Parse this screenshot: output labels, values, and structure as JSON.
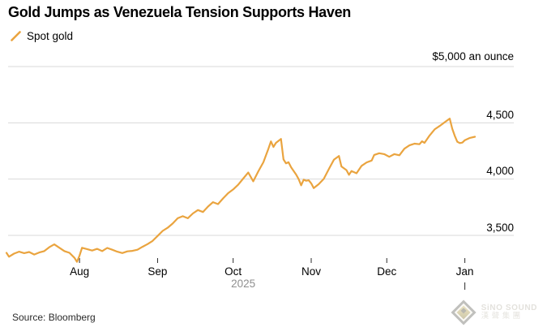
{
  "header": {
    "title": "Gold Jumps as Venezuela Tension Supports Haven",
    "legend": {
      "marker": "gold-slash",
      "series_label": "Spot gold"
    }
  },
  "source": "Source: Bloomberg",
  "watermark": {
    "logo": "diamond-logo",
    "line1": "SiNO SOUND",
    "line2": "漢聲集團"
  },
  "colors": {
    "background": "#ffffff",
    "line": "#EAA43F",
    "grid": "#D9D9D9",
    "axis_text": "#000000",
    "year_text": "#8F8F8F",
    "tick": "#2B2B2B"
  },
  "chart_data": {
    "type": "line",
    "title": "Gold Jumps as Venezuela Tension Supports Haven",
    "legend_position": "top-left",
    "grid": "horizontal-only",
    "x": {
      "unit": "days since 2025-07-03",
      "domain": [
        0,
        186
      ],
      "months": [
        {
          "label": "Aug",
          "day": 29
        },
        {
          "label": "Sep",
          "day": 60
        },
        {
          "label": "Oct",
          "day": 90
        },
        {
          "label": "Nov",
          "day": 121
        },
        {
          "label": "Dec",
          "day": 151
        },
        {
          "label": "Jan",
          "day": 182
        }
      ],
      "year_label": {
        "label": "2025",
        "center_day": 94
      },
      "year_boundary_tick_day": 182
    },
    "y": {
      "top_label": "$5,000 an ounce",
      "top_gridline_value": 5000,
      "gridline_values": [
        5000,
        4500,
        4000,
        3500
      ],
      "ticks": [
        {
          "label": "4,500",
          "value": 4500
        },
        {
          "label": "4,000",
          "value": 4000
        },
        {
          "label": "3,500",
          "value": 3500
        }
      ],
      "ylim": [
        3200,
        5000
      ]
    },
    "series": [
      {
        "name": "Spot gold",
        "color": "#EAA43F",
        "points": [
          [
            0,
            3345
          ],
          [
            1,
            3310
          ],
          [
            3,
            3338
          ],
          [
            5,
            3355
          ],
          [
            7,
            3342
          ],
          [
            9,
            3352
          ],
          [
            11,
            3330
          ],
          [
            13,
            3348
          ],
          [
            15,
            3360
          ],
          [
            17,
            3395
          ],
          [
            19,
            3420
          ],
          [
            21,
            3390
          ],
          [
            23,
            3360
          ],
          [
            25,
            3345
          ],
          [
            27,
            3300
          ],
          [
            28,
            3265
          ],
          [
            29,
            3320
          ],
          [
            30,
            3390
          ],
          [
            32,
            3378
          ],
          [
            34,
            3365
          ],
          [
            36,
            3380
          ],
          [
            38,
            3360
          ],
          [
            40,
            3388
          ],
          [
            42,
            3372
          ],
          [
            44,
            3355
          ],
          [
            46,
            3343
          ],
          [
            48,
            3358
          ],
          [
            50,
            3362
          ],
          [
            52,
            3372
          ],
          [
            54,
            3398
          ],
          [
            56,
            3422
          ],
          [
            58,
            3450
          ],
          [
            60,
            3495
          ],
          [
            62,
            3540
          ],
          [
            64,
            3568
          ],
          [
            66,
            3605
          ],
          [
            68,
            3652
          ],
          [
            70,
            3670
          ],
          [
            72,
            3652
          ],
          [
            74,
            3695
          ],
          [
            76,
            3725
          ],
          [
            78,
            3708
          ],
          [
            80,
            3755
          ],
          [
            82,
            3795
          ],
          [
            84,
            3778
          ],
          [
            86,
            3828
          ],
          [
            88,
            3875
          ],
          [
            90,
            3908
          ],
          [
            92,
            3950
          ],
          [
            94,
            4005
          ],
          [
            96,
            4058
          ],
          [
            98,
            3980
          ],
          [
            100,
            4070
          ],
          [
            102,
            4150
          ],
          [
            104,
            4270
          ],
          [
            105,
            4335
          ],
          [
            106,
            4285
          ],
          [
            107,
            4322
          ],
          [
            109,
            4357
          ],
          [
            110,
            4175
          ],
          [
            111,
            4140
          ],
          [
            112,
            4150
          ],
          [
            113,
            4105
          ],
          [
            115,
            4040
          ],
          [
            116,
            4000
          ],
          [
            117,
            3945
          ],
          [
            118,
            3995
          ],
          [
            119,
            3985
          ],
          [
            120,
            3990
          ],
          [
            121,
            3962
          ],
          [
            122,
            3920
          ],
          [
            124,
            3955
          ],
          [
            126,
            4002
          ],
          [
            128,
            4090
          ],
          [
            130,
            4172
          ],
          [
            132,
            4205
          ],
          [
            133,
            4112
          ],
          [
            135,
            4080
          ],
          [
            136,
            4038
          ],
          [
            137,
            4072
          ],
          [
            139,
            4052
          ],
          [
            141,
            4118
          ],
          [
            143,
            4148
          ],
          [
            145,
            4165
          ],
          [
            146,
            4215
          ],
          [
            148,
            4230
          ],
          [
            150,
            4222
          ],
          [
            152,
            4198
          ],
          [
            154,
            4222
          ],
          [
            156,
            4212
          ],
          [
            158,
            4270
          ],
          [
            160,
            4300
          ],
          [
            162,
            4315
          ],
          [
            164,
            4310
          ],
          [
            165,
            4336
          ],
          [
            166,
            4322
          ],
          [
            168,
            4388
          ],
          [
            170,
            4442
          ],
          [
            172,
            4472
          ],
          [
            174,
            4505
          ],
          [
            176,
            4538
          ],
          [
            177,
            4448
          ],
          [
            178,
            4385
          ],
          [
            179,
            4332
          ],
          [
            180,
            4320
          ],
          [
            181,
            4324
          ],
          [
            182,
            4346
          ],
          [
            184,
            4366
          ],
          [
            186,
            4376
          ]
        ]
      }
    ]
  }
}
